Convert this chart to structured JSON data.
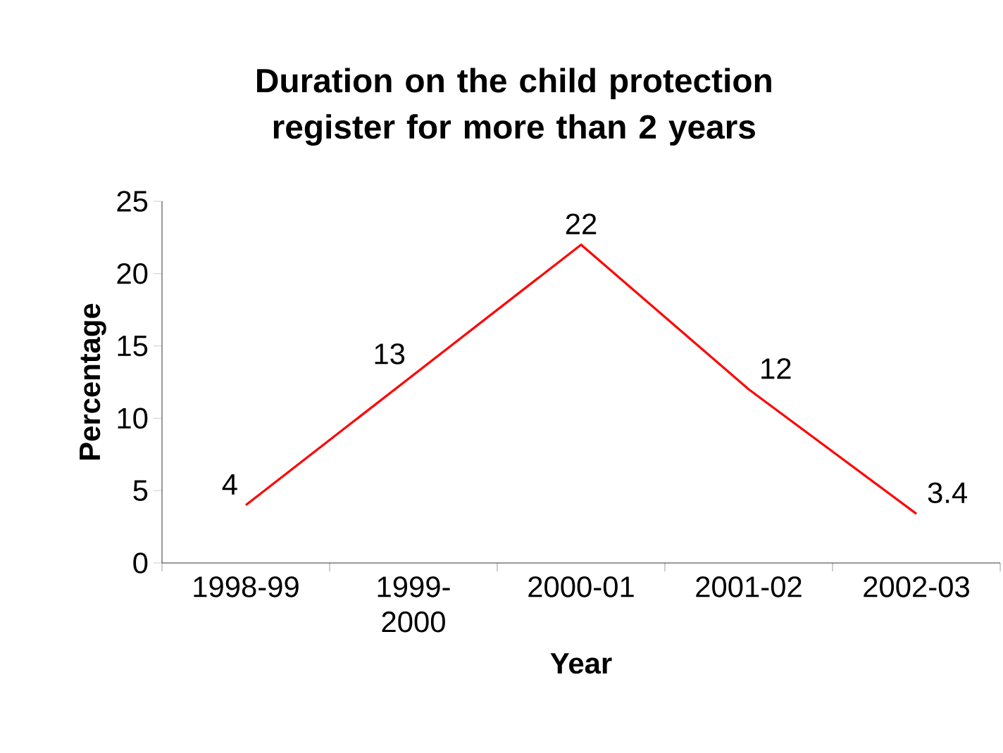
{
  "chart_data": {
    "type": "line",
    "title": "Duration on the child protection register for more than 2 years",
    "xlabel": "Year",
    "ylabel": "Percentage",
    "categories": [
      "1998-99",
      "1999-2000",
      "2000-01",
      "2001-02",
      "2002-03"
    ],
    "series": [
      {
        "color": "#ff0000",
        "values": [
          4,
          13,
          22,
          12,
          3.4
        ]
      }
    ],
    "ylim": [
      0,
      25
    ],
    "yticks": [
      0,
      5,
      10,
      15,
      20,
      25
    ],
    "data_labels": true,
    "marker": "none",
    "line_style": "solid"
  }
}
